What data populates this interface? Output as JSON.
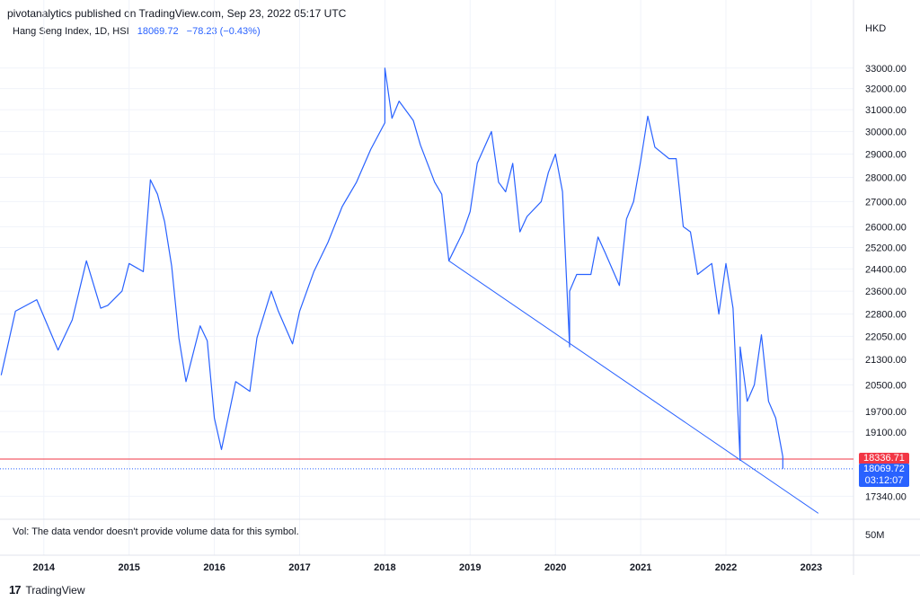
{
  "header": {
    "publisher": "pivotanalytics published on TradingView.com, Sep 23, 2022 05:17 UTC"
  },
  "legend": {
    "symbol": "Hang Seng Index, 1D, HSI",
    "last": "18069.72",
    "change": "−78.23 (−0.43%)"
  },
  "currency": "HKD",
  "volume_note": "Vol: The data vendor doesn't provide volume data for this symbol.",
  "volume_axis_label": "50M",
  "footer": {
    "logo": "17",
    "brand": "TradingView"
  },
  "price_tags": {
    "support": {
      "value": "18336.71",
      "color": "#f23645"
    },
    "last": {
      "value": "18069.72",
      "countdown": "03:12:07",
      "color": "#2962ff"
    }
  },
  "chart_data": {
    "type": "line",
    "title": "",
    "series": [
      {
        "color": "#2962ff",
        "x": [
          "2013-07",
          "2013-09",
          "2013-12",
          "2014-03",
          "2014-05",
          "2014-07",
          "2014-09",
          "2014-10",
          "2014-12",
          "2015-01",
          "2015-03",
          "2015-04",
          "2015-05",
          "2015-06",
          "2015-07",
          "2015-08",
          "2015-09",
          "2015-11",
          "2015-12",
          "2016-01",
          "2016-02",
          "2016-04",
          "2016-06",
          "2016-07",
          "2016-09",
          "2016-10",
          "2016-12",
          "2017-01",
          "2017-03",
          "2017-05",
          "2017-07",
          "2017-09",
          "2017-11",
          "2018-01",
          "2018-01",
          "2018-02",
          "2018-03",
          "2018-05",
          "2018-06",
          "2018-08",
          "2018-09",
          "2018-10",
          "2018-12",
          "2019-01",
          "2019-02",
          "2019-04",
          "2019-05",
          "2019-06",
          "2019-07",
          "2019-08",
          "2019-09",
          "2019-11",
          "2019-12",
          "2020-01",
          "2020-02",
          "2020-03",
          "2020-03",
          "2020-04",
          "2020-06",
          "2020-07",
          "2020-08",
          "2020-10",
          "2020-11",
          "2020-12",
          "2021-01",
          "2021-02",
          "2021-03",
          "2021-05",
          "2021-06",
          "2021-07",
          "2021-08",
          "2021-09",
          "2021-11",
          "2021-12",
          "2022-01",
          "2022-02",
          "2022-03",
          "2022-03",
          "2022-04",
          "2022-05",
          "2022-06",
          "2022-07",
          "2022-08",
          "2022-09",
          "2022-09"
        ],
        "y": [
          20800,
          22900,
          23300,
          21600,
          22600,
          24700,
          23000,
          23100,
          23600,
          24600,
          24300,
          27900,
          27300,
          26200,
          24500,
          22000,
          20600,
          22400,
          21900,
          19500,
          18600,
          20600,
          20300,
          22000,
          23600,
          22900,
          21800,
          22900,
          24300,
          25400,
          26800,
          27800,
          29200,
          30400,
          33000,
          30600,
          31400,
          30500,
          29400,
          27800,
          27300,
          24700,
          25800,
          26600,
          28600,
          30000,
          27800,
          27400,
          28600,
          25800,
          26400,
          27000,
          28200,
          29000,
          27400,
          21700,
          23600,
          24200,
          24200,
          25600,
          25000,
          23800,
          26300,
          27000,
          28700,
          30700,
          29300,
          28800,
          28800,
          26000,
          25800,
          24200,
          24600,
          22800,
          24600,
          23000,
          18300,
          21700,
          20000,
          20500,
          22100,
          20000,
          19500,
          18400,
          18070
        ]
      }
    ],
    "y_axis": {
      "labels": [
        "17340.00",
        "18069.72",
        "18336.71",
        "19100.00",
        "19700.00",
        "20500.00",
        "21300.00",
        "22050.00",
        "22800.00",
        "23600.00",
        "24400.00",
        "25200.00",
        "26000.00",
        "27000.00",
        "28000.00",
        "29000.00",
        "30000.00",
        "31000.00",
        "32000.00",
        "33000.00"
      ],
      "ticks": [
        17340,
        19100,
        19700,
        20500,
        21300,
        22050,
        22800,
        23600,
        24400,
        25200,
        26000,
        27000,
        28000,
        29000,
        30000,
        31000,
        32000,
        33000
      ],
      "scale": "log",
      "unit": "HKD"
    },
    "x_axis": {
      "labels": [
        "2014",
        "2015",
        "2016",
        "2017",
        "2018",
        "2019",
        "2020",
        "2021",
        "2022",
        "2023"
      ]
    },
    "horizontal_lines": [
      {
        "value": 18336.71,
        "color": "#f23645",
        "style": "solid"
      },
      {
        "value": 18069.72,
        "color": "#2962ff",
        "style": "dotted"
      }
    ],
    "trendline": {
      "from": {
        "x": "2018-10",
        "y": 24700
      },
      "to": {
        "x": "2023-02",
        "y": 16900
      },
      "color": "#2962ff"
    },
    "grid": true
  }
}
